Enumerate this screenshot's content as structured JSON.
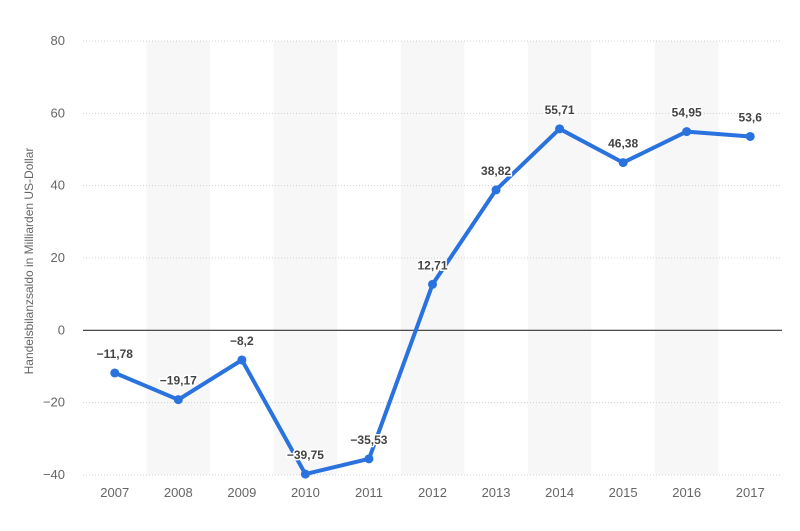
{
  "chart_data": {
    "type": "line",
    "title": "",
    "xlabel": "",
    "ylabel": "Handelsbilanzsaldo in Milliarden US-Dollar",
    "ylim": [
      -40,
      80
    ],
    "yticks": [
      {
        "value": -40,
        "label": "−40"
      },
      {
        "value": -20,
        "label": "−20"
      },
      {
        "value": 0,
        "label": "0"
      },
      {
        "value": 20,
        "label": "20"
      },
      {
        "value": 40,
        "label": "40"
      },
      {
        "value": 60,
        "label": "60"
      },
      {
        "value": 80,
        "label": "80"
      }
    ],
    "grid": true,
    "alternating_column_bands": true,
    "categories": [
      "2007",
      "2008",
      "2009",
      "2010",
      "2011",
      "2012",
      "2013",
      "2014",
      "2015",
      "2016",
      "2017"
    ],
    "series": [
      {
        "color": "#2a72de",
        "values": [
          -11.78,
          -19.17,
          -8.2,
          -39.75,
          -35.53,
          12.71,
          38.82,
          55.71,
          46.38,
          54.95,
          53.6
        ],
        "labels": [
          "−11,78",
          "−19,17",
          "−8,2",
          "−39,75",
          "−35,53",
          "12,71",
          "38,82",
          "55,71",
          "46,38",
          "54,95",
          "53,6"
        ]
      }
    ],
    "colors": {
      "line": "#2a72de",
      "band": "#f7f7f7",
      "grid": "#d0d0d0",
      "zero_line": "#333333"
    }
  }
}
